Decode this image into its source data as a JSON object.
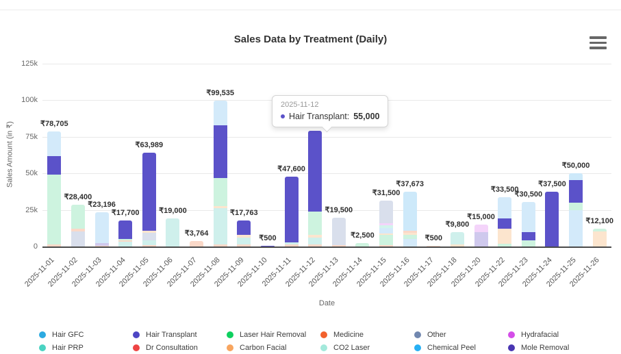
{
  "header": {
    "title": "Sales Data by Treatment (Daily)"
  },
  "controls": {
    "menu_icon": "hamburger-icon"
  },
  "axes": {
    "y_title": "Sales Amount (in ₹)",
    "x_title": "Date",
    "y_ticks": [
      {
        "label": "125k",
        "value": 125000
      },
      {
        "label": "100k",
        "value": 100000
      },
      {
        "label": "75k",
        "value": 75000
      },
      {
        "label": "50k",
        "value": 50000
      },
      {
        "label": "25k",
        "value": 25000
      },
      {
        "label": "0",
        "value": 0
      }
    ]
  },
  "tooltip": {
    "date": "2025-11-12",
    "series": "Hair Transplant:",
    "value": "55,000",
    "color": "#5B52C9"
  },
  "legend": [
    {
      "name": "Hair GFC",
      "color": "#2CAAE1"
    },
    {
      "name": "Hair PRP",
      "color": "#4AD3C2"
    },
    {
      "name": "Hair Transplant",
      "color": "#4D45C4"
    },
    {
      "name": "Dr Consultation",
      "color": "#EE4444"
    },
    {
      "name": "Laser Hair Removal",
      "color": "#0ED05F"
    },
    {
      "name": "Carbon Facial",
      "color": "#F8A55F"
    },
    {
      "name": "Medicine",
      "color": "#F2612D"
    },
    {
      "name": "CO2 Laser",
      "color": "#A3E9DB"
    },
    {
      "name": "Other",
      "color": "#7187AF"
    },
    {
      "name": "Chemical Peel",
      "color": "#27B0F4"
    },
    {
      "name": "Hydrafacial",
      "color": "#D44EE8"
    },
    {
      "name": "Mole Removal",
      "color": "#4936B2"
    }
  ],
  "chart_data": {
    "type": "bar",
    "stacked": true,
    "title": "Sales Data by Treatment (Daily)",
    "xlabel": "Date",
    "ylabel": "Sales Amount (in ₹)",
    "ylim": [
      0,
      125000
    ],
    "grid": true,
    "legend_position": "bottom",
    "categories": [
      "2025-11-01",
      "2025-11-02",
      "2025-11-03",
      "2025-11-04",
      "2025-11-05",
      "2025-11-06",
      "2025-11-07",
      "2025-11-08",
      "2025-11-09",
      "2025-11-10",
      "2025-11-11",
      "2025-11-12",
      "2025-11-13",
      "2025-11-14",
      "2025-11-15",
      "2025-11-16",
      "2025-11-17",
      "2025-11-18",
      "2025-11-20",
      "2025-11-22",
      "2025-11-23",
      "2025-11-24",
      "2025-11-25",
      "2025-11-26"
    ],
    "series": [
      {
        "name": "Hair GFC",
        "fill": "#CDE9FA"
      },
      {
        "name": "Hair PRP",
        "fill": "#D2F4EC"
      },
      {
        "name": "Hair Transplant",
        "fill": "#5B52C9"
      },
      {
        "name": "Dr Consultation",
        "fill": "#FBD7D7"
      },
      {
        "name": "Laser Hair Removal",
        "fill": "#CDF3DF"
      },
      {
        "name": "Carbon Facial",
        "fill": "#FCE5CE"
      },
      {
        "name": "Medicine",
        "fill": "#FAD8C8"
      },
      {
        "name": "CO2 Laser",
        "fill": "#CFF0EC"
      },
      {
        "name": "Other",
        "fill": "#D9DFEC"
      },
      {
        "name": "Chemical Peel",
        "fill": "#D3EAFA"
      },
      {
        "name": "Hydrafacial",
        "fill": "#F4D4FA"
      },
      {
        "name": "Mole Removal",
        "fill": "#CFC9ED"
      }
    ],
    "bars": [
      {
        "date": "2025-11-01",
        "total": 78705,
        "label": "₹78,705",
        "segments": [
          {
            "series": "Medicine",
            "value": 1500
          },
          {
            "series": "Laser Hair Removal",
            "value": 47500
          },
          {
            "series": "Hair Transplant",
            "value": 13000
          },
          {
            "series": "Chemical Peel",
            "value": 16705
          }
        ]
      },
      {
        "date": "2025-11-02",
        "total": 28400,
        "label": "₹28,400",
        "segments": [
          {
            "series": "Other",
            "value": 10400
          },
          {
            "series": "Medicine",
            "value": 2000
          },
          {
            "series": "Laser Hair Removal",
            "value": 16000
          }
        ]
      },
      {
        "date": "2025-11-03",
        "total": 23196,
        "label": "₹23,196",
        "segments": [
          {
            "series": "Medicine",
            "value": 700
          },
          {
            "series": "Mole Removal",
            "value": 1800
          },
          {
            "series": "Chemical Peel",
            "value": 20696
          }
        ]
      },
      {
        "date": "2025-11-04",
        "total": 17700,
        "label": "₹17,700",
        "segments": [
          {
            "series": "CO2 Laser",
            "value": 3500
          },
          {
            "series": "Medicine",
            "value": 700
          },
          {
            "series": "Laser Hair Removal",
            "value": 800
          },
          {
            "series": "Hair Transplant",
            "value": 12700
          }
        ]
      },
      {
        "date": "2025-11-05",
        "total": 63989,
        "label": "₹63,989",
        "segments": [
          {
            "series": "Medicine",
            "value": 1000
          },
          {
            "series": "CO2 Laser",
            "value": 3000
          },
          {
            "series": "Other",
            "value": 5489
          },
          {
            "series": "Carbon Facial",
            "value": 1500
          },
          {
            "series": "Hair Transplant",
            "value": 53000
          }
        ]
      },
      {
        "date": "2025-11-06",
        "total": 19000,
        "label": "₹19,000",
        "segments": [
          {
            "series": "CO2 Laser",
            "value": 19000
          }
        ]
      },
      {
        "date": "2025-11-07",
        "total": 3764,
        "label": "₹3,764",
        "segments": [
          {
            "series": "Medicine",
            "value": 3764
          }
        ]
      },
      {
        "date": "2025-11-08",
        "total": 99535,
        "label": "₹99,535",
        "segments": [
          {
            "series": "Medicine",
            "value": 1500
          },
          {
            "series": "CO2 Laser",
            "value": 24500
          },
          {
            "series": "Carbon Facial",
            "value": 1535
          },
          {
            "series": "Laser Hair Removal",
            "value": 19500
          },
          {
            "series": "Hair Transplant",
            "value": 36000
          },
          {
            "series": "Chemical Peel",
            "value": 16500
          }
        ]
      },
      {
        "date": "2025-11-09",
        "total": 17763,
        "label": "₹17,763",
        "segments": [
          {
            "series": "Medicine",
            "value": 1500
          },
          {
            "series": "CO2 Laser",
            "value": 4500
          },
          {
            "series": "Carbon Facial",
            "value": 2000
          },
          {
            "series": "Hair Transplant",
            "value": 9763
          }
        ]
      },
      {
        "date": "2025-11-10",
        "total": 500,
        "label": "₹500",
        "segments": [
          {
            "series": "Hair Transplant",
            "value": 500
          }
        ]
      },
      {
        "date": "2025-11-11",
        "total": 47600,
        "label": "₹47,600",
        "segments": [
          {
            "series": "Medicine",
            "value": 1300
          },
          {
            "series": "CO2 Laser",
            "value": 1300
          },
          {
            "series": "Hair Transplant",
            "value": 45000
          }
        ]
      },
      {
        "date": "2025-11-12",
        "total": 79000,
        "label": "",
        "segments": [
          {
            "series": "Medicine",
            "value": 1500
          },
          {
            "series": "CO2 Laser",
            "value": 4500
          },
          {
            "series": "Carbon Facial",
            "value": 2000
          },
          {
            "series": "Laser Hair Removal",
            "value": 16000
          },
          {
            "series": "Hair Transplant",
            "value": 55000
          }
        ]
      },
      {
        "date": "2025-11-13",
        "total": 19500,
        "label": "₹19,500",
        "segments": [
          {
            "series": "Medicine",
            "value": 1000
          },
          {
            "series": "Other",
            "value": 18500
          }
        ]
      },
      {
        "date": "2025-11-14",
        "total": 2500,
        "label": "₹2,500",
        "segments": [
          {
            "series": "Laser Hair Removal",
            "value": 2500
          }
        ]
      },
      {
        "date": "2025-11-15",
        "total": 31500,
        "label": "₹31,500",
        "segments": [
          {
            "series": "Medicine",
            "value": 800
          },
          {
            "series": "Laser Hair Removal",
            "value": 7200
          },
          {
            "series": "Carbon Facial",
            "value": 800
          },
          {
            "series": "Chemical Peel",
            "value": 3700
          },
          {
            "series": "Hair PRP",
            "value": 2000
          },
          {
            "series": "Hydrafacial",
            "value": 1500
          },
          {
            "series": "Other",
            "value": 15500
          }
        ]
      },
      {
        "date": "2025-11-16",
        "total": 37673,
        "label": "₹37,673",
        "segments": [
          {
            "series": "Chemical Peel",
            "value": 5000
          },
          {
            "series": "Laser Hair Removal",
            "value": 3000
          },
          {
            "series": "Carbon Facial",
            "value": 1500
          },
          {
            "series": "Medicine",
            "value": 1500
          },
          {
            "series": "Hair GFC",
            "value": 26673
          }
        ]
      },
      {
        "date": "2025-11-17",
        "total": 500,
        "label": "₹500",
        "segments": [
          {
            "series": "Medicine",
            "value": 500
          }
        ]
      },
      {
        "date": "2025-11-18",
        "total": 9800,
        "label": "₹9,800",
        "segments": [
          {
            "series": "Carbon Facial",
            "value": 1300
          },
          {
            "series": "CO2 Laser",
            "value": 8500
          }
        ]
      },
      {
        "date": "2025-11-20",
        "total": 15000,
        "label": "₹15,000",
        "segments": [
          {
            "series": "Mole Removal",
            "value": 10000
          },
          {
            "series": "Hydrafacial",
            "value": 5000
          }
        ]
      },
      {
        "date": "2025-11-22",
        "total": 33500,
        "label": "₹33,500",
        "segments": [
          {
            "series": "Laser Hair Removal",
            "value": 2000
          },
          {
            "series": "Carbon Facial",
            "value": 10000
          },
          {
            "series": "Hair Transplant",
            "value": 7000
          },
          {
            "series": "Chemical Peel",
            "value": 14500
          }
        ]
      },
      {
        "date": "2025-11-23",
        "total": 30500,
        "label": "₹30,500",
        "segments": [
          {
            "series": "Laser Hair Removal",
            "value": 4000
          },
          {
            "series": "Hair Transplant",
            "value": 6000
          },
          {
            "series": "Chemical Peel",
            "value": 20500
          }
        ]
      },
      {
        "date": "2025-11-24",
        "total": 37500,
        "label": "₹37,500",
        "segments": [
          {
            "series": "Hair Transplant",
            "value": 37500
          }
        ]
      },
      {
        "date": "2025-11-25",
        "total": 50000,
        "label": "₹50,000",
        "segments": [
          {
            "series": "Chemical Peel",
            "value": 25000
          },
          {
            "series": "Laser Hair Removal",
            "value": 5000
          },
          {
            "series": "Hair Transplant",
            "value": 15500
          },
          {
            "series": "Hair GFC",
            "value": 4500
          }
        ]
      },
      {
        "date": "2025-11-26",
        "total": 12100,
        "label": "₹12,100",
        "segments": [
          {
            "series": "Carbon Facial",
            "value": 10100
          },
          {
            "series": "Laser Hair Removal",
            "value": 2000
          }
        ]
      }
    ]
  }
}
